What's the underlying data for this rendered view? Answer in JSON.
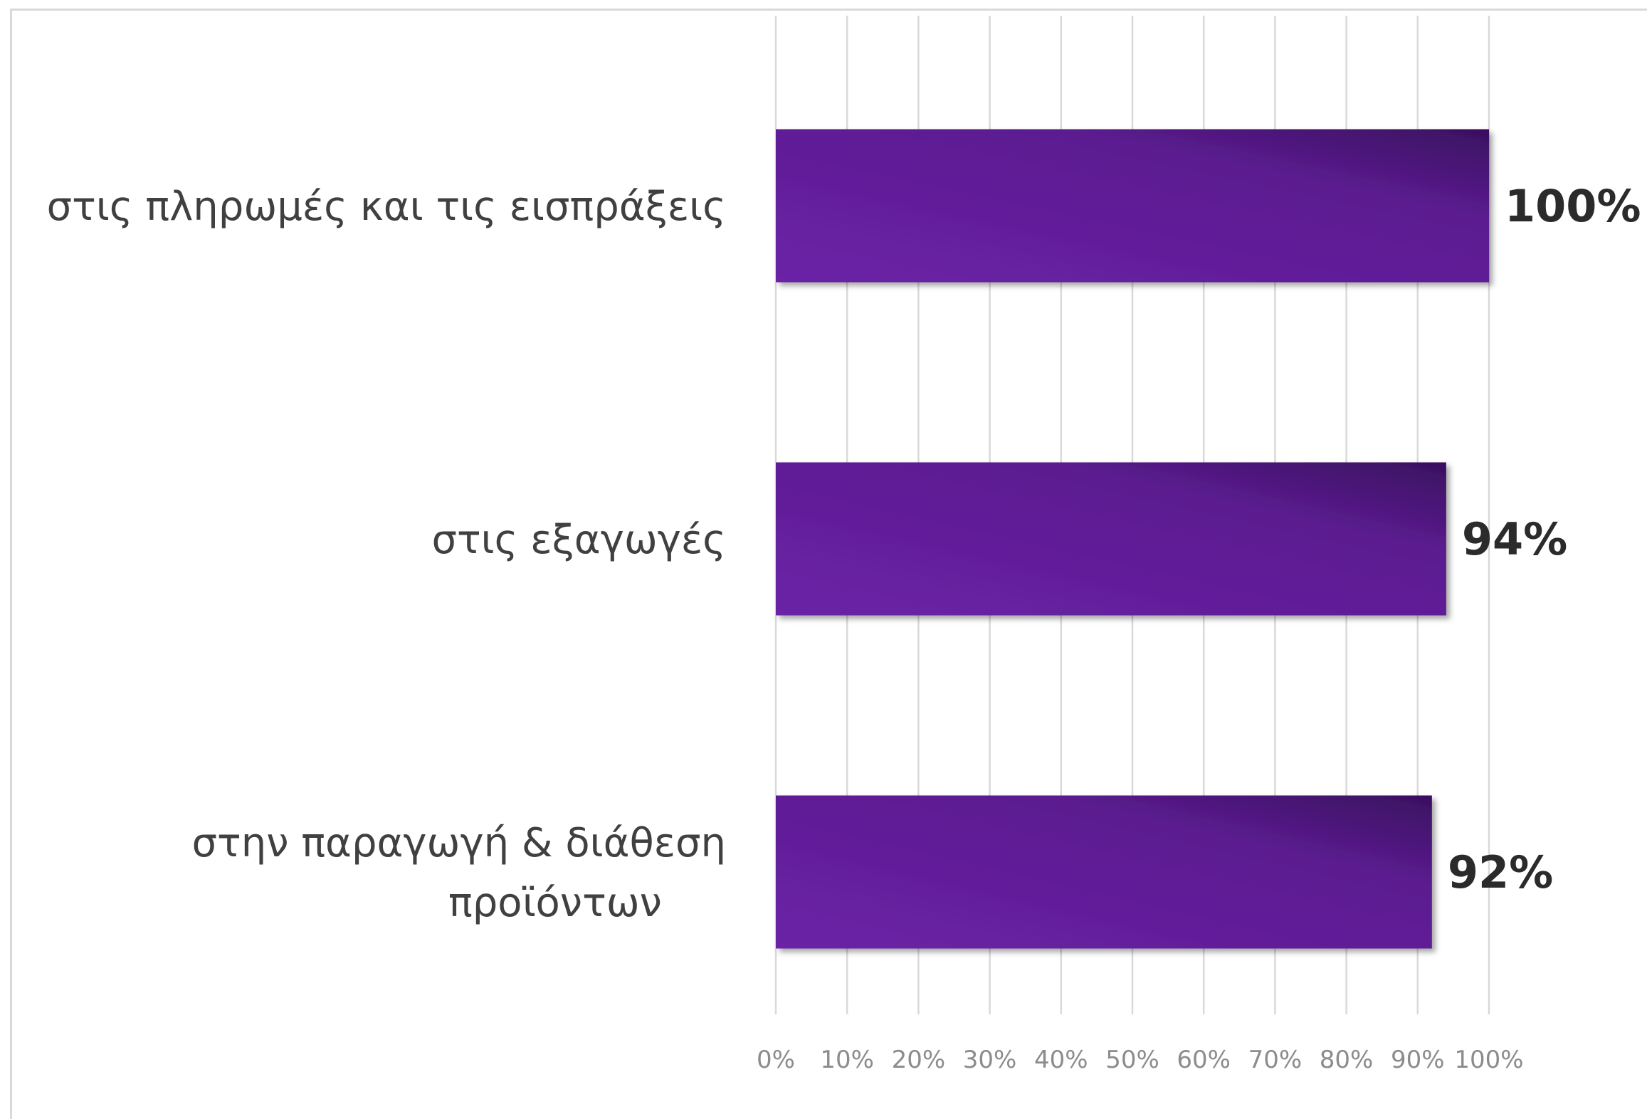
{
  "chart_data": {
    "type": "bar",
    "orientation": "horizontal",
    "categories": [
      [
        "στις πληρωμές και τις εισπράξεις"
      ],
      [
        "στις εξαγωγές"
      ],
      [
        "στην παραγωγή & διάθεση",
        "προϊόντων"
      ]
    ],
    "values": [
      100,
      94,
      92
    ],
    "value_labels": [
      "100%",
      "94%",
      "92%"
    ],
    "xlim": [
      0,
      100
    ],
    "x_ticks": [
      "0%",
      "10%",
      "20%",
      "30%",
      "40%",
      "50%",
      "60%",
      "70%",
      "80%",
      "90%",
      "100%"
    ],
    "grid": true,
    "bar_color": "#5f1e96",
    "bar_color_dark": "#3f1262",
    "grid_color": "#d9d9d9",
    "title": "",
    "xlabel": "",
    "ylabel": ""
  }
}
